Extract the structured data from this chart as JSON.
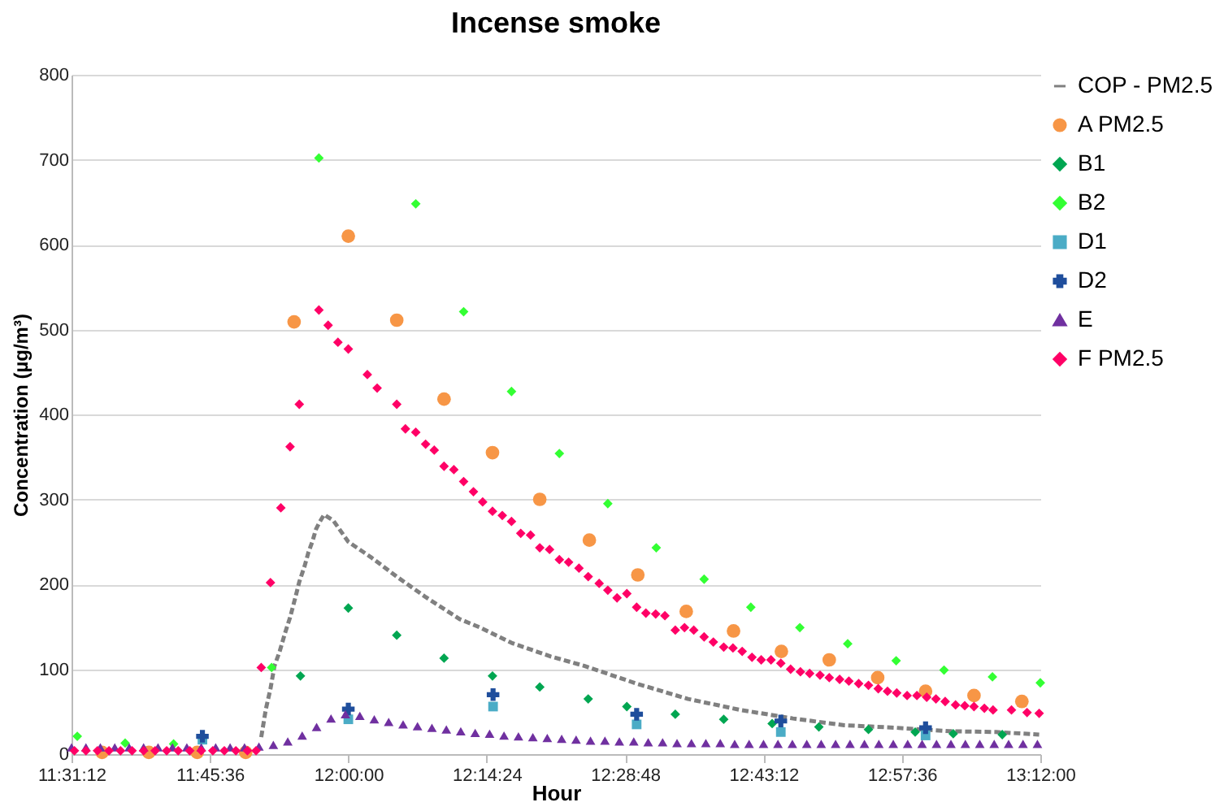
{
  "chart_data": {
    "type": "scatter",
    "title": "Incense smoke",
    "xlabel": "Hour",
    "ylabel": "Concentration (µg/m³)",
    "xlim": [
      11.52,
      13.2
    ],
    "xticks": [
      {
        "value": 11.52,
        "label": "11:31:12"
      },
      {
        "value": 11.76,
        "label": "11:45:36"
      },
      {
        "value": 12.0,
        "label": "12:00:00"
      },
      {
        "value": 12.24,
        "label": "12:14:24"
      },
      {
        "value": 12.48,
        "label": "12:28:48"
      },
      {
        "value": 12.72,
        "label": "12:43:12"
      },
      {
        "value": 12.96,
        "label": "12:57:36"
      },
      {
        "value": 13.2,
        "label": "13:12:00"
      }
    ],
    "ylim": [
      0,
      800
    ],
    "yticks": [
      0,
      100,
      200,
      300,
      400,
      500,
      600,
      700,
      800
    ],
    "grid": "y",
    "legend": "top right",
    "series": [
      {
        "name": "COP - PM2.5",
        "type": "line",
        "line_style": "dashed",
        "color": "#808080",
        "x": [
          11.849,
          11.857,
          11.865,
          11.872,
          11.881,
          11.89,
          11.899,
          11.908,
          11.915,
          11.924,
          11.931,
          11.938,
          11.944,
          11.95,
          11.958,
          11.974,
          12.0,
          12.039,
          12.084,
          12.134,
          12.193,
          12.229,
          12.283,
          12.351,
          12.409,
          12.5,
          12.589,
          12.68,
          12.771,
          12.86,
          12.951,
          13.042,
          13.123,
          13.198
        ],
        "values": [
          20,
          53,
          77,
          104,
          121,
          142,
          161,
          184,
          203,
          221,
          238,
          251,
          265,
          273,
          282,
          275,
          250,
          232,
          209,
          185,
          159,
          149,
          131,
          115,
          104,
          83,
          65,
          52,
          42,
          34,
          31,
          27,
          26,
          23
        ]
      },
      {
        "name": "A PM2.5",
        "marker": "circle",
        "color": "#f79646",
        "x": [
          11.573,
          11.654,
          11.738,
          11.822,
          11.906,
          12.0,
          12.084,
          12.166,
          12.25,
          12.332,
          12.418,
          12.502,
          12.586,
          12.668,
          12.751,
          12.834,
          12.918,
          13.001,
          13.085,
          13.168
        ],
        "values": [
          2,
          2,
          2,
          2,
          509,
          610,
          511,
          418,
          355,
          300,
          252,
          211,
          168,
          145,
          121,
          111,
          90,
          74,
          69,
          62
        ]
      },
      {
        "name": "B1",
        "marker": "diamond",
        "color": "#00a651",
        "x": [
          11.917,
          12.0,
          12.084,
          12.166,
          12.25,
          12.332,
          12.416,
          12.483,
          12.567,
          12.651,
          12.735,
          12.816,
          12.902,
          12.983,
          13.049,
          13.134
        ],
        "values": [
          92,
          172,
          140,
          113,
          92,
          79,
          65,
          56,
          47,
          41,
          36,
          32,
          29,
          26,
          24,
          23
        ]
      },
      {
        "name": "B2",
        "marker": "diamond",
        "color": "#33ff33",
        "x": [
          11.53,
          11.613,
          11.697,
          11.867,
          11.949,
          12.117,
          12.2,
          12.283,
          12.366,
          12.45,
          12.534,
          12.617,
          12.698,
          12.783,
          12.866,
          12.95,
          13.033,
          13.117,
          13.2
        ],
        "values": [
          21,
          13,
          12,
          102,
          702,
          648,
          521,
          427,
          354,
          295,
          243,
          206,
          173,
          149,
          130,
          110,
          99,
          91,
          84
        ]
      },
      {
        "name": "D1",
        "marker": "square",
        "color": "#4bacc6",
        "x": [
          11.747,
          12.0,
          12.251,
          12.5,
          12.75,
          13.001
        ],
        "values": [
          17,
          41,
          56,
          35,
          26,
          22
        ]
      },
      {
        "name": "D2",
        "marker": "cross",
        "color": "#1f4e9c",
        "x": [
          11.747,
          12.0,
          12.251,
          12.5,
          12.75,
          13.001
        ],
        "values": [
          21,
          53,
          70,
          47,
          39,
          31
        ]
      },
      {
        "name": "E",
        "marker": "triangle",
        "color": "#7030a0",
        "x": [
          11.52,
          11.545,
          11.57,
          11.595,
          11.62,
          11.645,
          11.67,
          11.695,
          11.72,
          11.745,
          11.77,
          11.795,
          11.82,
          11.845,
          11.87,
          11.895,
          11.92,
          11.945,
          11.97,
          11.995,
          12.02,
          12.045,
          12.07,
          12.095,
          12.12,
          12.145,
          12.17,
          12.195,
          12.22,
          12.245,
          12.27,
          12.295,
          12.32,
          12.345,
          12.37,
          12.395,
          12.42,
          12.445,
          12.47,
          12.495,
          12.52,
          12.545,
          12.57,
          12.595,
          12.62,
          12.645,
          12.67,
          12.695,
          12.72,
          12.745,
          12.77,
          12.795,
          12.82,
          12.845,
          12.87,
          12.895,
          12.92,
          12.945,
          12.97,
          12.995,
          13.02,
          13.045,
          13.07,
          13.095,
          13.12,
          13.145,
          13.17,
          13.195
        ],
        "values": [
          8,
          8,
          8,
          8,
          8,
          8,
          8,
          8,
          8,
          8,
          8,
          8,
          8,
          9,
          11,
          15,
          22,
          32,
          42,
          47,
          45,
          41,
          38,
          35,
          33,
          31,
          29,
          27,
          25,
          24,
          22,
          21,
          20,
          19,
          18,
          17,
          16,
          16,
          15,
          15,
          14,
          14,
          13,
          13,
          13,
          13,
          12,
          12,
          12,
          12,
          12,
          12,
          12,
          12,
          12,
          12,
          12,
          12,
          12,
          12,
          12,
          12,
          12,
          12,
          12,
          12,
          12,
          12
        ]
      },
      {
        "name": "F PM2.5",
        "marker": "diamond",
        "color": "#ff0066",
        "x": [
          11.525,
          11.545,
          11.565,
          11.585,
          11.605,
          11.625,
          11.645,
          11.665,
          11.685,
          11.705,
          11.725,
          11.745,
          11.765,
          11.785,
          11.805,
          11.825,
          11.84,
          11.849,
          11.865,
          11.883,
          11.899,
          11.915,
          11.949,
          11.965,
          11.982,
          12.0,
          12.033,
          12.05,
          12.084,
          12.099,
          12.117,
          12.134,
          12.149,
          12.166,
          12.183,
          12.2,
          12.217,
          12.233,
          12.25,
          12.267,
          12.283,
          12.299,
          12.316,
          12.332,
          12.349,
          12.366,
          12.382,
          12.4,
          12.416,
          12.435,
          12.45,
          12.466,
          12.483,
          12.5,
          12.516,
          12.533,
          12.549,
          12.567,
          12.583,
          12.599,
          12.617,
          12.633,
          12.651,
          12.667,
          12.683,
          12.7,
          12.716,
          12.733,
          12.75,
          12.767,
          12.784,
          12.8,
          12.818,
          12.834,
          12.852,
          12.868,
          12.885,
          12.902,
          12.919,
          12.935,
          12.951,
          12.969,
          12.986,
          13.003,
          13.019,
          13.035,
          13.053,
          13.069,
          13.085,
          13.103,
          13.118,
          13.15,
          13.177,
          13.198
        ],
        "values": [
          4,
          4,
          4,
          4,
          4,
          4,
          4,
          4,
          4,
          4,
          4,
          4,
          4,
          4,
          4,
          4,
          4,
          102,
          202,
          290,
          362,
          412,
          523,
          505,
          485,
          477,
          447,
          431,
          412,
          383,
          379,
          365,
          358,
          339,
          335,
          321,
          309,
          297,
          286,
          281,
          274,
          260,
          258,
          243,
          241,
          229,
          226,
          219,
          209,
          201,
          193,
          184,
          189,
          173,
          166,
          165,
          163,
          146,
          149,
          146,
          138,
          132,
          126,
          125,
          121,
          114,
          111,
          111,
          107,
          100,
          97,
          95,
          93,
          90,
          88,
          86,
          83,
          81,
          77,
          74,
          72,
          69,
          69,
          67,
          65,
          62,
          58,
          57,
          56,
          54,
          52,
          52,
          49,
          48
        ]
      }
    ]
  }
}
